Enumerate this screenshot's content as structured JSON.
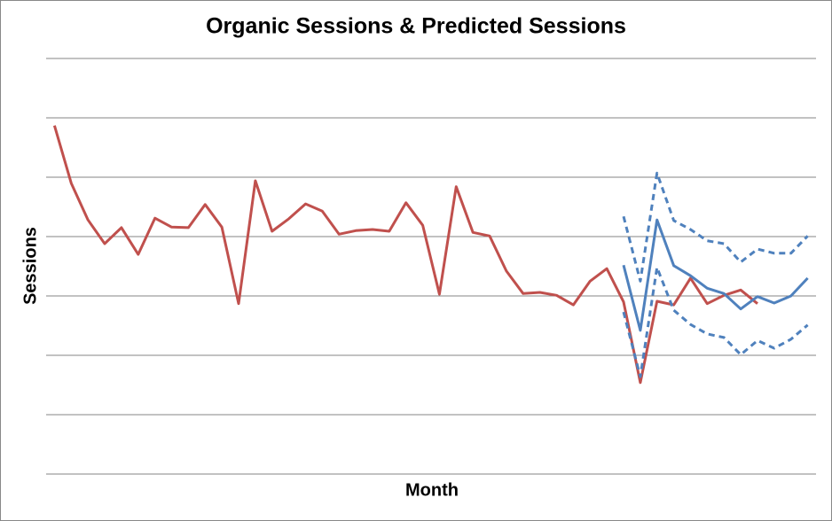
{
  "chart_data": {
    "type": "line",
    "title": "Organic Sessions & Predicted Sessions",
    "x_label": "Month",
    "y_label": "Sessions",
    "categories": [
      null,
      null,
      null,
      null,
      null,
      null,
      null,
      null,
      null,
      null,
      null,
      null,
      null,
      null,
      null,
      null,
      null,
      null,
      null,
      null,
      null,
      null,
      null,
      null,
      null,
      null,
      null,
      null,
      null,
      null,
      null,
      null,
      null,
      null,
      null,
      null,
      null,
      null,
      null,
      null,
      null,
      null,
      null,
      null,
      null,
      null
    ],
    "ylim": [
      0,
      7
    ],
    "yticks": [
      0,
      1,
      2,
      3,
      4,
      5,
      6,
      7
    ],
    "grid": true,
    "series": [
      {
        "color": "#c0504d",
        "dashed": false,
        "values": [
          5.87,
          4.9,
          4.28,
          3.88,
          4.15,
          3.7,
          4.31,
          4.16,
          4.15,
          4.54,
          4.16,
          2.87,
          4.94,
          4.09,
          4.3,
          4.55,
          4.43,
          4.04,
          4.1,
          4.12,
          4.09,
          4.57,
          4.19,
          3.03,
          4.84,
          4.07,
          4.01,
          3.42,
          3.04,
          3.06,
          3.01,
          2.85,
          3.25,
          3.46,
          2.9,
          1.54,
          2.91,
          2.85,
          3.3,
          2.87,
          3.01,
          3.1,
          2.87,
          null,
          null,
          null
        ]
      },
      {
        "color": "#4f81bd",
        "dashed": false,
        "values": [
          null,
          null,
          null,
          null,
          null,
          null,
          null,
          null,
          null,
          null,
          null,
          null,
          null,
          null,
          null,
          null,
          null,
          null,
          null,
          null,
          null,
          null,
          null,
          null,
          null,
          null,
          null,
          null,
          null,
          null,
          null,
          null,
          null,
          null,
          3.52,
          2.42,
          4.28,
          3.51,
          3.34,
          3.13,
          3.04,
          2.78,
          2.99,
          2.88,
          3.0,
          3.3
        ]
      },
      {
        "color": "#4f81bd",
        "dashed": true,
        "values": [
          null,
          null,
          null,
          null,
          null,
          null,
          null,
          null,
          null,
          null,
          null,
          null,
          null,
          null,
          null,
          null,
          null,
          null,
          null,
          null,
          null,
          null,
          null,
          null,
          null,
          null,
          null,
          null,
          null,
          null,
          null,
          null,
          null,
          null,
          4.34,
          3.25,
          5.07,
          4.27,
          4.12,
          3.93,
          3.88,
          3.57,
          3.79,
          3.72,
          3.72,
          4.01
        ]
      },
      {
        "color": "#4f81bd",
        "dashed": true,
        "values": [
          null,
          null,
          null,
          null,
          null,
          null,
          null,
          null,
          null,
          null,
          null,
          null,
          null,
          null,
          null,
          null,
          null,
          null,
          null,
          null,
          null,
          null,
          null,
          null,
          null,
          null,
          null,
          null,
          null,
          null,
          null,
          null,
          null,
          null,
          2.73,
          1.64,
          3.48,
          2.76,
          2.52,
          2.36,
          2.3,
          2.01,
          2.25,
          2.12,
          2.27,
          2.51
        ]
      }
    ]
  }
}
